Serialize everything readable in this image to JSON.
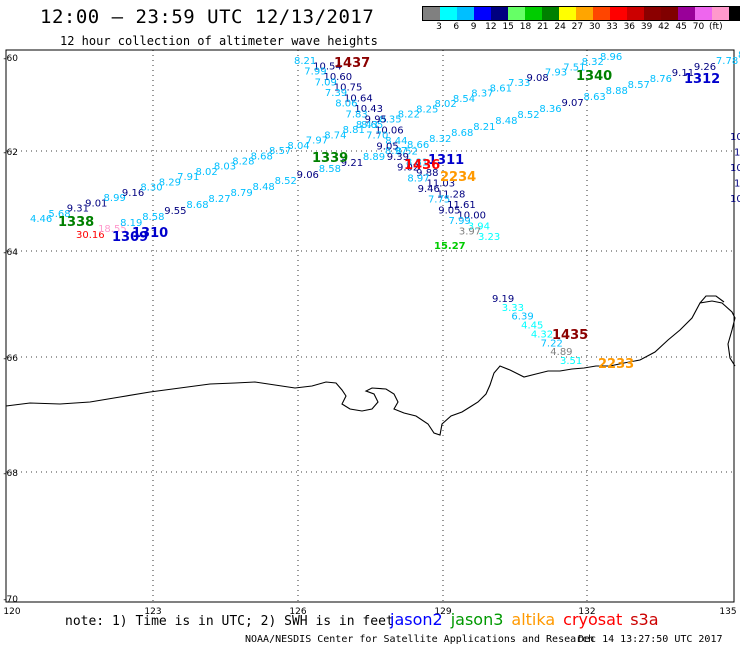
{
  "header": {
    "title": "12:00 — 23:59 UTC 12/13/2017",
    "subtitle": "12 hour collection of altimeter wave heights"
  },
  "legend": {
    "colors": [
      "#808080",
      "#00ffff",
      "#00bfff",
      "#0000ff",
      "#000080",
      "#66ff66",
      "#00cc00",
      "#008000",
      "#ffff00",
      "#ffa500",
      "#ff4500",
      "#ff0000",
      "#cc0000",
      "#8b0000",
      "#800000",
      "#990099",
      "#ee66ee",
      "#ff99cc",
      "#000000"
    ],
    "ticks": [
      "3",
      "6",
      "9",
      "12",
      "15",
      "18",
      "21",
      "24",
      "27",
      "30",
      "33",
      "36",
      "39",
      "42",
      "45",
      "70",
      "(ft)"
    ]
  },
  "axes": {
    "lat_labels": [
      "-60",
      "-62",
      "-64",
      "-66",
      "-68",
      "-70"
    ],
    "lon_labels": [
      "120",
      "123",
      "126",
      "129",
      "132",
      "135"
    ]
  },
  "tracks": [
    {
      "time": "1310",
      "color": "#0000cc",
      "points": [
        {
          "v": "4.46",
          "c": "#00bfff"
        },
        {
          "v": "5.68",
          "c": "#00bfff"
        },
        {
          "v": "9.31",
          "c": "#000080"
        },
        {
          "v": "9.01",
          "c": "#000080"
        },
        {
          "v": "8.99",
          "c": "#00bfff"
        },
        {
          "v": "9.16",
          "c": "#000080"
        },
        {
          "v": "8.30",
          "c": "#00bfff"
        },
        {
          "v": "8.29",
          "c": "#00bfff"
        },
        {
          "v": "7.91",
          "c": "#00bfff"
        },
        {
          "v": "8.02",
          "c": "#00bfff"
        },
        {
          "v": "8.03",
          "c": "#00bfff"
        },
        {
          "v": "8.28",
          "c": "#00bfff"
        },
        {
          "v": "8.68",
          "c": "#00bfff"
        },
        {
          "v": "8.57",
          "c": "#00bfff"
        },
        {
          "v": "8.04",
          "c": "#00bfff"
        },
        {
          "v": "7.97",
          "c": "#00bfff"
        },
        {
          "v": "8.74",
          "c": "#00bfff"
        },
        {
          "v": "8.81",
          "c": "#00bfff"
        },
        {
          "v": "8.65",
          "c": "#00bfff"
        },
        {
          "v": "8.35",
          "c": "#00bfff"
        },
        {
          "v": "8.22",
          "c": "#00bfff"
        },
        {
          "v": "8.25",
          "c": "#00bfff"
        },
        {
          "v": "8.02",
          "c": "#00bfff"
        },
        {
          "v": "8.54",
          "c": "#00bfff"
        },
        {
          "v": "8.37",
          "c": "#00bfff"
        },
        {
          "v": "8.61",
          "c": "#00bfff"
        },
        {
          "v": "7.33",
          "c": "#00bfff"
        },
        {
          "v": "9.08",
          "c": "#000080"
        },
        {
          "v": "7.93",
          "c": "#00bfff"
        },
        {
          "v": "7.51",
          "c": "#00bfff"
        },
        {
          "v": "8.32",
          "c": "#00bfff"
        },
        {
          "v": "8.96",
          "c": "#00bfff"
        }
      ]
    },
    {
      "time": "1309",
      "color": "#0000cc",
      "points": [
        {
          "v": "30.16",
          "c": "#ff0000"
        },
        {
          "v": "18.55",
          "c": "#ff99cc"
        },
        {
          "v": "8.19",
          "c": "#00bfff"
        },
        {
          "v": "8.58",
          "c": "#00bfff"
        },
        {
          "v": "9.55",
          "c": "#000080"
        },
        {
          "v": "8.68",
          "c": "#00bfff"
        },
        {
          "v": "8.27",
          "c": "#00bfff"
        },
        {
          "v": "8.79",
          "c": "#00bfff"
        },
        {
          "v": "8.48",
          "c": "#00bfff"
        },
        {
          "v": "8.52",
          "c": "#00bfff"
        },
        {
          "v": "9.06",
          "c": "#000080"
        },
        {
          "v": "8.58",
          "c": "#00bfff"
        },
        {
          "v": "9.21",
          "c": "#000080"
        },
        {
          "v": "8.89",
          "c": "#00bfff"
        },
        {
          "v": "8.97",
          "c": "#00bfff"
        },
        {
          "v": "8.66",
          "c": "#00bfff"
        },
        {
          "v": "8.32",
          "c": "#00bfff"
        },
        {
          "v": "8.68",
          "c": "#00bfff"
        },
        {
          "v": "8.21",
          "c": "#00bfff"
        },
        {
          "v": "8.48",
          "c": "#00bfff"
        },
        {
          "v": "8.52",
          "c": "#00bfff"
        },
        {
          "v": "8.36",
          "c": "#00bfff"
        },
        {
          "v": "9.07",
          "c": "#000080"
        },
        {
          "v": "8.63",
          "c": "#00bfff"
        },
        {
          "v": "8.88",
          "c": "#00bfff"
        },
        {
          "v": "8.57",
          "c": "#00bfff"
        },
        {
          "v": "8.76",
          "c": "#00bfff"
        },
        {
          "v": "9.11",
          "c": "#000080"
        },
        {
          "v": "9.26",
          "c": "#000080"
        },
        {
          "v": "7.78",
          "c": "#00bfff"
        },
        {
          "v": "8.74",
          "c": "#00bfff"
        }
      ]
    },
    {
      "time": "1437",
      "color": "#8b0000",
      "points": [
        {
          "v": "8.21",
          "c": "#00bfff"
        },
        {
          "v": "10.54",
          "c": "#000080"
        },
        {
          "v": "7.99",
          "c": "#00bfff"
        },
        {
          "v": "10.60",
          "c": "#000080"
        },
        {
          "v": "7.09",
          "c": "#00bfff"
        },
        {
          "v": "10.75",
          "c": "#000080"
        },
        {
          "v": "7.39",
          "c": "#00bfff"
        },
        {
          "v": "10.64",
          "c": "#000080"
        },
        {
          "v": "8.06",
          "c": "#00bfff"
        },
        {
          "v": "10.43",
          "c": "#000080"
        },
        {
          "v": "7.83",
          "c": "#00bfff"
        },
        {
          "v": "9.95",
          "c": "#000080"
        },
        {
          "v": "8.43",
          "c": "#00bfff"
        },
        {
          "v": "10.06",
          "c": "#000080"
        },
        {
          "v": "7.70",
          "c": "#00bfff"
        },
        {
          "v": "8.44",
          "c": "#00bfff"
        },
        {
          "v": "9.05",
          "c": "#000080"
        },
        {
          "v": "8.52",
          "c": "#00bfff"
        },
        {
          "v": "9.39",
          "c": "#000080"
        },
        {
          "v": "8.81",
          "c": "#00bfff"
        },
        {
          "v": "9.02",
          "c": "#000080"
        },
        {
          "v": "9.88",
          "c": "#000080"
        },
        {
          "v": "8.97",
          "c": "#00bfff"
        },
        {
          "v": "11.03",
          "c": "#000080"
        },
        {
          "v": "9.46",
          "c": "#000080"
        },
        {
          "v": "11.28",
          "c": "#000080"
        },
        {
          "v": "7.75",
          "c": "#00bfff"
        },
        {
          "v": "11.61",
          "c": "#000080"
        },
        {
          "v": "9.05",
          "c": "#000080"
        },
        {
          "v": "10.00",
          "c": "#000080"
        },
        {
          "v": "7.99",
          "c": "#00bfff"
        },
        {
          "v": "3.94",
          "c": "#00ffff"
        },
        {
          "v": "3.97",
          "c": "#808080"
        },
        {
          "v": "3.23",
          "c": "#00ffff"
        }
      ]
    },
    {
      "time": "1435",
      "color": "#8b0000",
      "points": [
        {
          "v": "9.19",
          "c": "#000080"
        },
        {
          "v": "3.33",
          "c": "#00ffff"
        },
        {
          "v": "6.39",
          "c": "#00bfff"
        },
        {
          "v": "4.45",
          "c": "#00ffff"
        },
        {
          "v": "4.32",
          "c": "#00ffff"
        },
        {
          "v": "7.22",
          "c": "#00bfff"
        },
        {
          "v": "4.89",
          "c": "#808080"
        },
        {
          "v": "3.51",
          "c": "#00ffff"
        }
      ]
    },
    {
      "time": "1311",
      "color": "#0000cc",
      "points": [
        {
          "v": "10.5",
          "c": "#000080"
        },
        {
          "v": "10.",
          "c": "#000080"
        },
        {
          "v": "10.",
          "c": "#000080"
        },
        {
          "v": "10.",
          "c": "#000080"
        },
        {
          "v": "10.4",
          "c": "#000080"
        }
      ]
    }
  ],
  "pass_labels": [
    {
      "text": "1338",
      "color": "#008000"
    },
    {
      "text": "1339",
      "color": "#008000"
    },
    {
      "text": "1340",
      "color": "#008000"
    },
    {
      "text": "1310",
      "color": "#0000cc"
    },
    {
      "text": "1309",
      "color": "#0000cc"
    },
    {
      "text": "1312",
      "color": "#0000cc"
    },
    {
      "text": "1311",
      "color": "#0000cc"
    },
    {
      "text": "1437",
      "color": "#8b0000"
    },
    {
      "text": "1436",
      "color": "#ff0000"
    },
    {
      "text": "1435",
      "color": "#8b0000"
    },
    {
      "text": "2234",
      "color": "#ff9900"
    },
    {
      "text": "2233",
      "color": "#ff9900"
    },
    {
      "text": "15.27",
      "color": "#00cc00"
    }
  ],
  "footer": {
    "note": "note: 1) Time is in UTC; 2) SWH is in feet",
    "satellites": [
      {
        "name": "jason2",
        "color": "#0000ff"
      },
      {
        "name": "jason3",
        "color": "#009900"
      },
      {
        "name": "altika",
        "color": "#ff9900"
      },
      {
        "name": "cryosat",
        "color": "#ff0000"
      },
      {
        "name": "s3a",
        "color": "#cc0000"
      }
    ],
    "credit": "NOAA/NESDIS Center for Satellite Applications and Research",
    "timestamp": "Dec 14 13:27:50 UTC 2017"
  }
}
